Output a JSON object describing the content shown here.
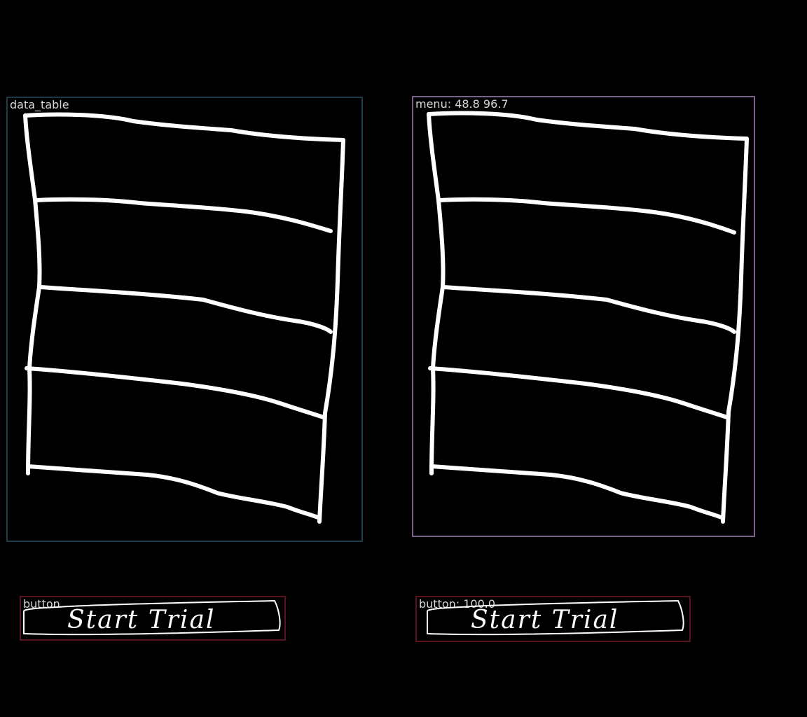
{
  "detections": {
    "left_table": {
      "label": "data_table",
      "color": "#1d3c47"
    },
    "right_menu": {
      "label": "menu: 48.8 96.7",
      "color": "#7c5f8e"
    },
    "left_button": {
      "label": "button",
      "color": "#5a1420"
    },
    "right_button": {
      "label": "button: 100.0",
      "color": "#5a1420"
    }
  },
  "sketch": {
    "button_text": "Start Trial",
    "row_count": 4
  }
}
